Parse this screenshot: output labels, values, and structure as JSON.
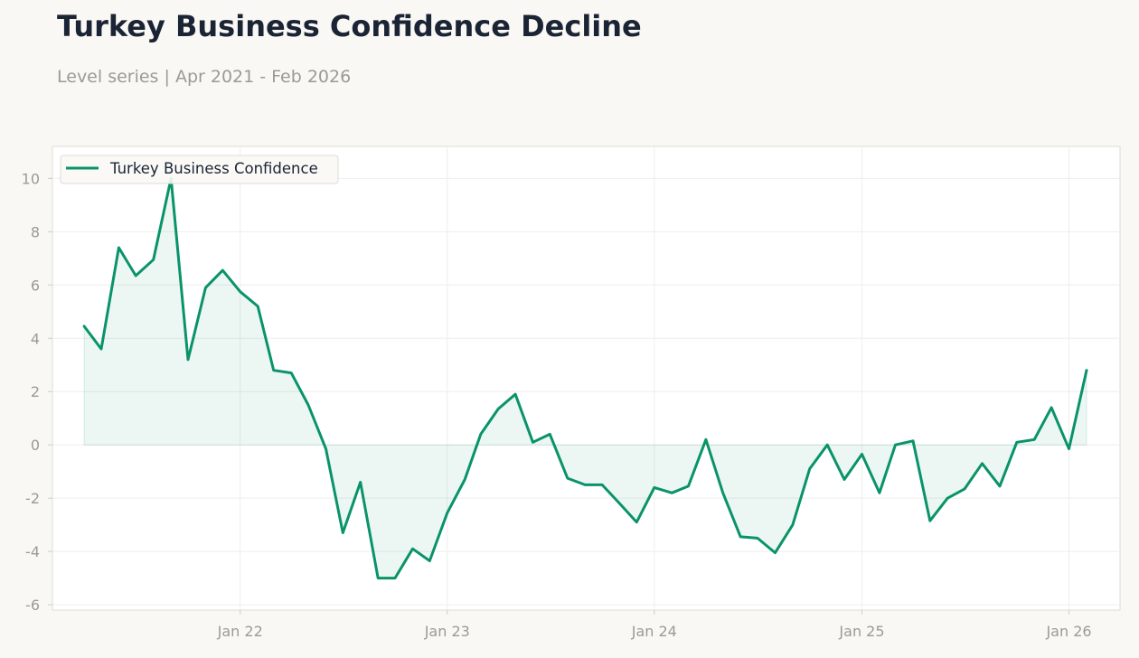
{
  "header": {
    "title": "Turkey Business Confidence Decline",
    "subtitle": "Level series | Apr 2021 - Feb 2026"
  },
  "colors": {
    "line": "#0a936a",
    "area": "#0a936a",
    "background": "#f9f8f5",
    "plot_background": "#ffffff",
    "grid": "#eeeeec",
    "tick_text": "#9a9a96",
    "title_text": "#1b2434"
  },
  "chart_data": {
    "type": "area",
    "title": "Turkey Business Confidence Decline",
    "subtitle": "Level series | Apr 2021 - Feb 2026",
    "xlabel": "",
    "ylabel": "",
    "grid": true,
    "legend_position": "top-left",
    "ylim": [
      -6.2,
      11.2
    ],
    "yticks": [
      -6,
      -4,
      -2,
      0,
      2,
      4,
      6,
      8,
      10
    ],
    "xlim": [
      "2021-02-04",
      "2026-04-01"
    ],
    "xticks": [
      {
        "label": "Jan 22",
        "date": "2022-01-01"
      },
      {
        "label": "Jan 23",
        "date": "2023-01-01"
      },
      {
        "label": "Jan 24",
        "date": "2024-01-01"
      },
      {
        "label": "Jan 25",
        "date": "2025-01-01"
      },
      {
        "label": "Jan 26",
        "date": "2026-01-01"
      }
    ],
    "fill_baseline": 0,
    "series": [
      {
        "name": "Turkey Business Confidence",
        "x": [
          "2021-04",
          "2021-05",
          "2021-06",
          "2021-07",
          "2021-08",
          "2021-09",
          "2021-10",
          "2021-11",
          "2021-12",
          "2022-01",
          "2022-02",
          "2022-03",
          "2022-04",
          "2022-05",
          "2022-06",
          "2022-07",
          "2022-08",
          "2022-09",
          "2022-10",
          "2022-11",
          "2022-12",
          "2023-01",
          "2023-02",
          "2023-03",
          "2023-04",
          "2023-05",
          "2023-06",
          "2023-07",
          "2023-08",
          "2023-09",
          "2023-10",
          "2023-11",
          "2023-12",
          "2024-01",
          "2024-02",
          "2024-03",
          "2024-04",
          "2024-05",
          "2024-06",
          "2024-07",
          "2024-08",
          "2024-09",
          "2024-10",
          "2024-11",
          "2024-12",
          "2025-01",
          "2025-02",
          "2025-03",
          "2025-04",
          "2025-05",
          "2025-06",
          "2025-07",
          "2025-08",
          "2025-09",
          "2025-10",
          "2025-11",
          "2025-12",
          "2026-01",
          "2026-02"
        ],
        "values": [
          4.45,
          3.6,
          7.4,
          6.35,
          6.95,
          10.0,
          3.2,
          5.9,
          6.55,
          5.75,
          5.2,
          2.8,
          2.7,
          1.5,
          -0.15,
          -3.3,
          -1.4,
          -5.0,
          -5.0,
          -3.9,
          -4.35,
          -2.55,
          -1.3,
          0.4,
          1.35,
          1.9,
          0.1,
          0.4,
          -1.25,
          -1.5,
          -1.5,
          -2.2,
          -2.9,
          -1.6,
          -1.8,
          -1.55,
          0.2,
          -1.8,
          -3.45,
          -3.5,
          -4.05,
          -3.0,
          -0.9,
          0.0,
          -1.3,
          -0.35,
          -1.8,
          0.0,
          0.15,
          -2.85,
          -2.0,
          -1.65,
          -0.7,
          -1.55,
          0.1,
          0.2,
          1.4,
          -0.15,
          2.8
        ]
      }
    ]
  }
}
